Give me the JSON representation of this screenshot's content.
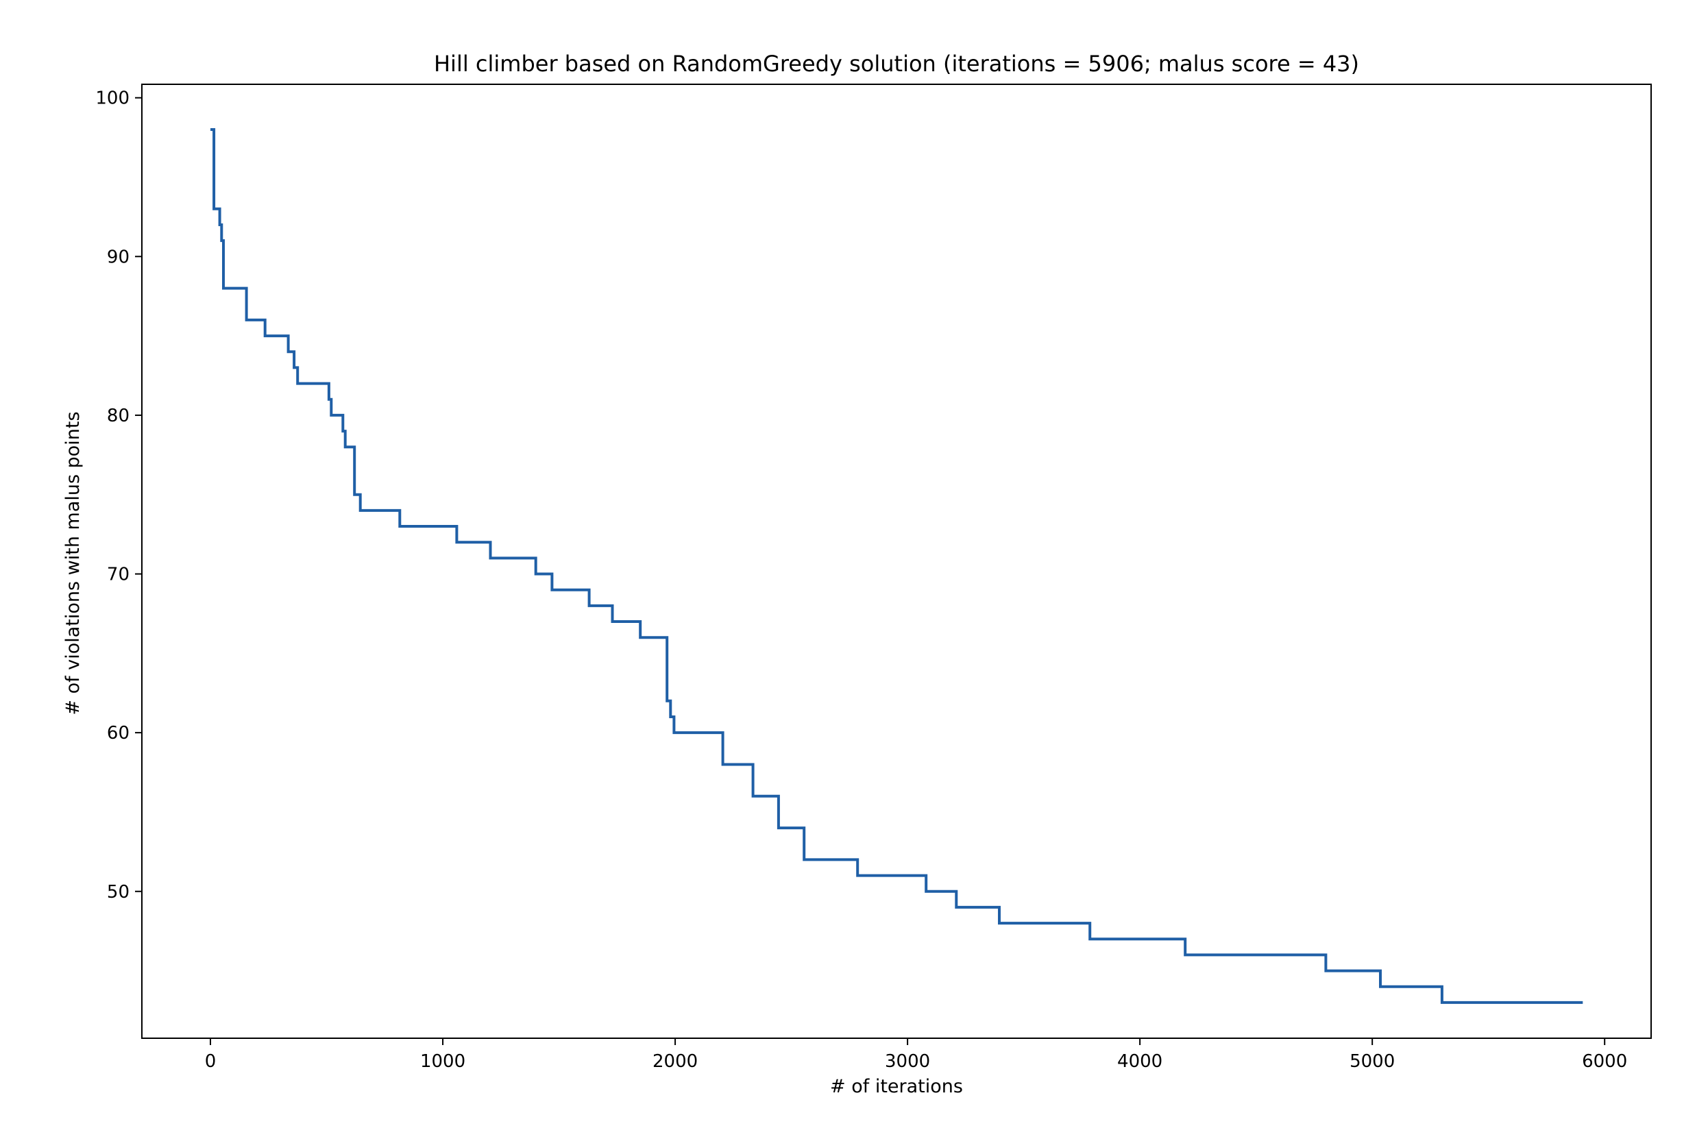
{
  "chart_data": {
    "type": "line",
    "title": "Hill climber based on RandomGreedy solution (iterations = 5906; malus score = 43)",
    "xlabel": "# of iterations",
    "ylabel": "# of violations with malus points",
    "xlim": [
      -295,
      6200
    ],
    "ylim": [
      40.75,
      100.85
    ],
    "xticks": [
      0,
      1000,
      2000,
      3000,
      4000,
      5000,
      6000
    ],
    "yticks": [
      50,
      60,
      70,
      80,
      90,
      100
    ],
    "grid": false,
    "line_color": "#1f5fa6",
    "series": [
      {
        "step": "post",
        "points": [
          [
            0,
            98
          ],
          [
            15,
            98
          ],
          [
            15,
            93
          ],
          [
            40,
            93
          ],
          [
            40,
            92
          ],
          [
            48,
            92
          ],
          [
            48,
            91
          ],
          [
            56,
            91
          ],
          [
            56,
            88
          ],
          [
            155,
            88
          ],
          [
            155,
            86
          ],
          [
            235,
            86
          ],
          [
            235,
            85
          ],
          [
            335,
            85
          ],
          [
            335,
            84
          ],
          [
            360,
            84
          ],
          [
            360,
            83
          ],
          [
            375,
            83
          ],
          [
            375,
            82
          ],
          [
            510,
            82
          ],
          [
            510,
            81
          ],
          [
            520,
            81
          ],
          [
            520,
            80
          ],
          [
            570,
            80
          ],
          [
            570,
            79
          ],
          [
            580,
            79
          ],
          [
            580,
            78
          ],
          [
            620,
            78
          ],
          [
            620,
            75
          ],
          [
            645,
            75
          ],
          [
            645,
            74
          ],
          [
            815,
            74
          ],
          [
            815,
            73
          ],
          [
            1060,
            73
          ],
          [
            1060,
            72
          ],
          [
            1205,
            72
          ],
          [
            1205,
            71
          ],
          [
            1400,
            71
          ],
          [
            1400,
            70
          ],
          [
            1470,
            70
          ],
          [
            1470,
            69
          ],
          [
            1630,
            69
          ],
          [
            1630,
            68
          ],
          [
            1730,
            68
          ],
          [
            1730,
            67
          ],
          [
            1850,
            67
          ],
          [
            1850,
            66
          ],
          [
            1965,
            66
          ],
          [
            1965,
            62
          ],
          [
            1980,
            62
          ],
          [
            1980,
            61
          ],
          [
            1995,
            61
          ],
          [
            1995,
            60
          ],
          [
            2205,
            60
          ],
          [
            2205,
            58
          ],
          [
            2335,
            58
          ],
          [
            2335,
            56
          ],
          [
            2445,
            56
          ],
          [
            2445,
            54
          ],
          [
            2555,
            54
          ],
          [
            2555,
            52
          ],
          [
            2785,
            52
          ],
          [
            2785,
            51
          ],
          [
            3080,
            51
          ],
          [
            3080,
            50
          ],
          [
            3210,
            50
          ],
          [
            3210,
            49
          ],
          [
            3395,
            49
          ],
          [
            3395,
            48
          ],
          [
            3785,
            48
          ],
          [
            3785,
            47
          ],
          [
            4195,
            47
          ],
          [
            4195,
            46
          ],
          [
            4800,
            46
          ],
          [
            4800,
            45
          ],
          [
            5035,
            45
          ],
          [
            5035,
            44
          ],
          [
            5300,
            44
          ],
          [
            5300,
            43
          ],
          [
            5906,
            43
          ]
        ]
      }
    ]
  }
}
